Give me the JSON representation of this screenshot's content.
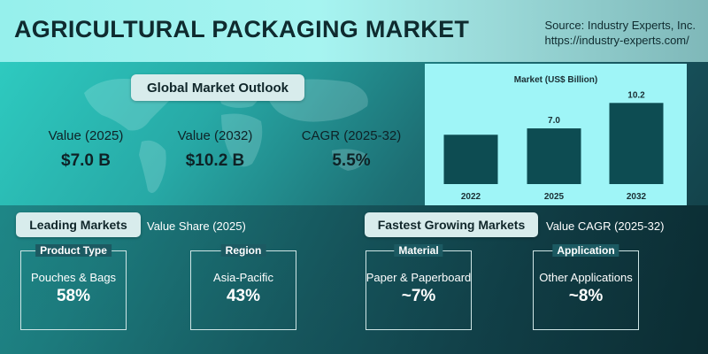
{
  "header": {
    "title": "AGRICULTURAL PACKAGING MARKET",
    "source_line1": "Source: Industry Experts, Inc.",
    "source_line2": "https://industry-experts.com/"
  },
  "outlook": {
    "badge": "Global Market Outlook",
    "kpis": [
      {
        "label": "Value (2025)",
        "value": "$7.0 B"
      },
      {
        "label": "Value (2032)",
        "value": "$10.2 B"
      },
      {
        "label": "CAGR (2025-32)",
        "value": "5.5%"
      }
    ]
  },
  "chart_data": {
    "type": "bar",
    "title": "Market (US$ Billion)",
    "categories": [
      "2022",
      "2025",
      "2032"
    ],
    "values": [
      6.2,
      7.0,
      10.2
    ],
    "data_labels": [
      "",
      "7.0",
      "10.2"
    ],
    "ylim": [
      0,
      11
    ],
    "grid": false,
    "colors": {
      "bar": "#0d4c52",
      "background": "#9ff5f7",
      "text": "#1a2e33"
    }
  },
  "leading": {
    "badge": "Leading Markets",
    "subtitle": "Value Share (2025)",
    "cards": [
      {
        "label": "Product Type",
        "name": "Pouches & Bags",
        "value": "58%"
      },
      {
        "label": "Region",
        "name": "Asia-Pacific",
        "value": "43%"
      }
    ]
  },
  "fastest": {
    "badge": "Fastest Growing Markets",
    "subtitle": "Value CAGR (2025-32)",
    "cards": [
      {
        "label": "Material",
        "name": "Paper & Paperboard",
        "value": "~7%"
      },
      {
        "label": "Application",
        "name": "Other Applications",
        "value": "~8%"
      }
    ]
  }
}
